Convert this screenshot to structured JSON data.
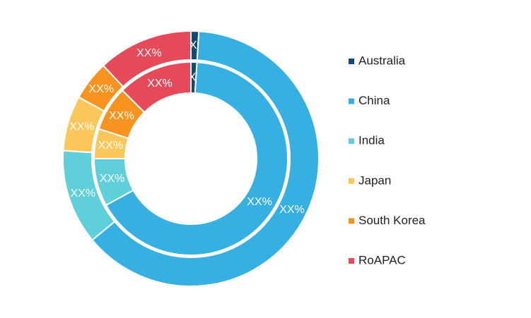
{
  "chart_data": {
    "type": "donut",
    "categories": [
      "Australia",
      "China",
      "India",
      "Japan",
      "South Korea",
      "RoAPAC"
    ],
    "colors": [
      "#0f4c75",
      "#36b0e2",
      "#5fcfd9",
      "#fcc75a",
      "#f7931e",
      "#e5495a"
    ],
    "series": [
      {
        "values": [
          1,
          63,
          12,
          7,
          5,
          12
        ],
        "value_labels": [
          "XX%",
          "XX%",
          "XX%",
          "XX%",
          "XX%",
          "XX%"
        ]
      },
      {
        "values": [
          1,
          66,
          8,
          5,
          7.5,
          12.5
        ],
        "value_labels": [
          "XX%",
          "XX%",
          "XX%",
          "XX%",
          "XX%",
          "XX%"
        ]
      }
    ],
    "legend": "right"
  }
}
